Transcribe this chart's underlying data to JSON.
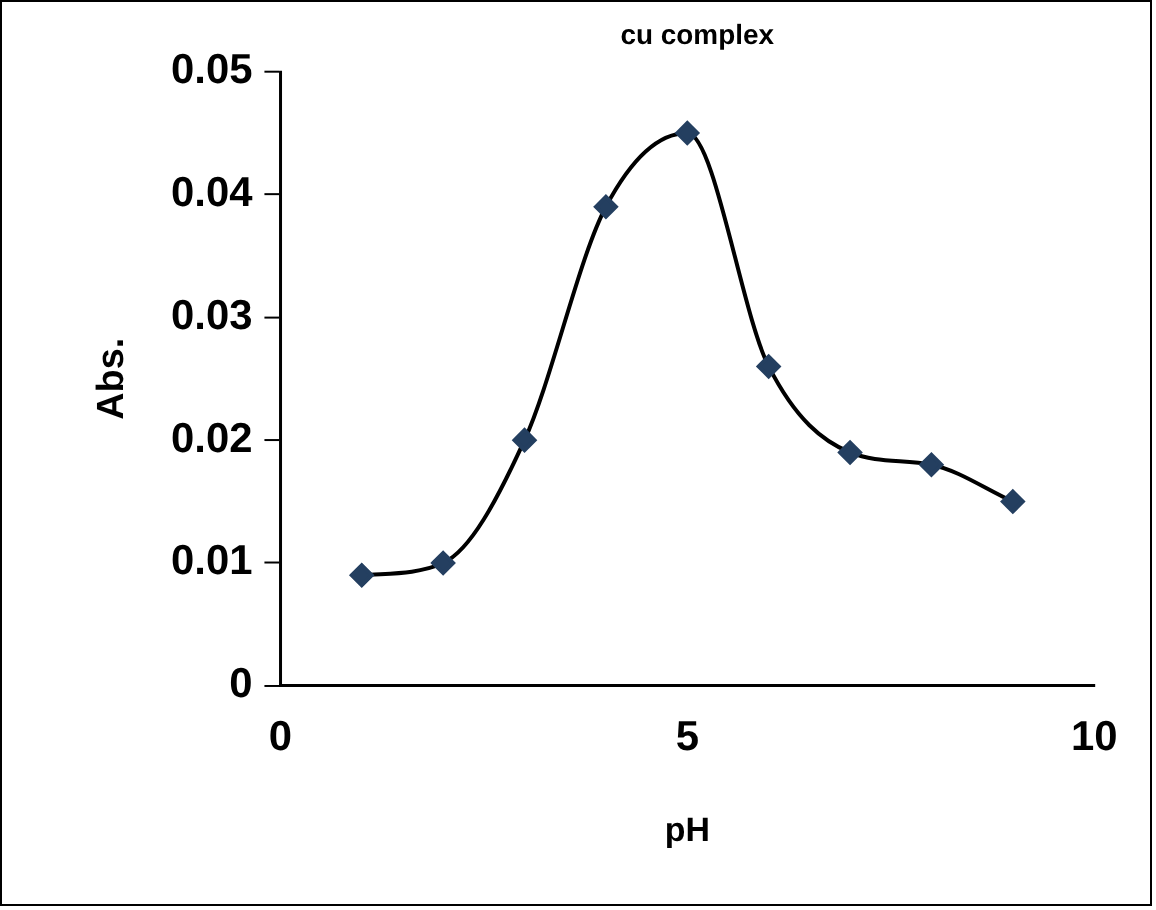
{
  "chart_data": {
    "type": "line",
    "title": "cu complex",
    "xlabel": "pH",
    "ylabel": "Abs.",
    "x": [
      1,
      2,
      3,
      4,
      5,
      6,
      7,
      8,
      9
    ],
    "series": [
      {
        "color": "#243f60",
        "values": [
          0.009,
          0.01,
          0.02,
          0.039,
          0.045,
          0.026,
          0.019,
          0.018,
          0.015
        ]
      }
    ],
    "xlim": [
      0,
      10
    ],
    "xticks": [
      0,
      5,
      10
    ],
    "ylim": [
      0,
      0.05
    ],
    "yticks": [
      0,
      0.01,
      0.02,
      0.03,
      0.04,
      0.05
    ],
    "grid": false,
    "legend": false,
    "marker": "diamond",
    "line_style": "solid"
  }
}
